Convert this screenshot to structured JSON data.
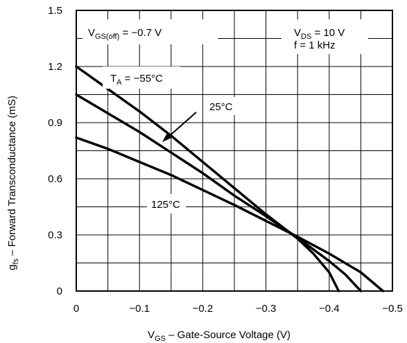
{
  "chart_data": {
    "type": "line",
    "title": "",
    "xlabel": {
      "main": "V",
      "sub": "GS",
      "rest": " – Gate-Source Voltage (V)"
    },
    "ylabel": {
      "main": "g",
      "sub": "fs",
      "rest": " – Forward Transconductance (mS)"
    },
    "xlim": [
      0,
      -0.5
    ],
    "ylim": [
      0,
      1.5
    ],
    "x_ticks": [
      0,
      -0.1,
      -0.2,
      -0.3,
      -0.4,
      -0.5
    ],
    "x_tick_labels": [
      "0",
      "−0.1",
      "−0.2",
      "−0.3",
      "−0.4",
      "−0.5"
    ],
    "y_ticks": [
      0,
      0.3,
      0.6,
      0.9,
      1.2,
      1.5
    ],
    "y_tick_labels": [
      "0",
      "0.3",
      "0.6",
      "0.9",
      "1.2",
      "1.5"
    ],
    "grid": true,
    "grid_x_step": 0.05,
    "grid_y_step": 0.15,
    "series": [
      {
        "name": "TA = −55°C",
        "x": [
          0,
          -0.05,
          -0.1,
          -0.15,
          -0.2,
          -0.25,
          -0.3,
          -0.35,
          -0.375,
          -0.4,
          -0.415
        ],
        "y": [
          1.2,
          1.08,
          0.96,
          0.83,
          0.69,
          0.55,
          0.41,
          0.28,
          0.2,
          0.1,
          0.0
        ]
      },
      {
        "name": "25°C",
        "x": [
          0,
          -0.05,
          -0.1,
          -0.15,
          -0.2,
          -0.25,
          -0.3,
          -0.35,
          -0.4,
          -0.425,
          -0.45
        ],
        "y": [
          1.05,
          0.95,
          0.85,
          0.74,
          0.63,
          0.51,
          0.4,
          0.285,
          0.16,
          0.09,
          0.0
        ]
      },
      {
        "name": "125°C",
        "x": [
          0,
          -0.05,
          -0.1,
          -0.15,
          -0.2,
          -0.25,
          -0.3,
          -0.35,
          -0.4,
          -0.45,
          -0.485
        ],
        "y": [
          0.82,
          0.76,
          0.69,
          0.62,
          0.54,
          0.46,
          0.375,
          0.29,
          0.2,
          0.1,
          0.0
        ]
      }
    ],
    "annotations": {
      "vgs_off": {
        "main": "V",
        "sub": "GS(off)",
        "rest": " = −0.7 V"
      },
      "vds": {
        "main": "V",
        "sub": "DS",
        "rest": " = 10 V"
      },
      "freq": "f = 1 kHz",
      "ta_label": {
        "main": "T",
        "sub": "A",
        "rest": " = −55°C"
      },
      "label_25": "25°C",
      "label_125": "125°C"
    }
  }
}
